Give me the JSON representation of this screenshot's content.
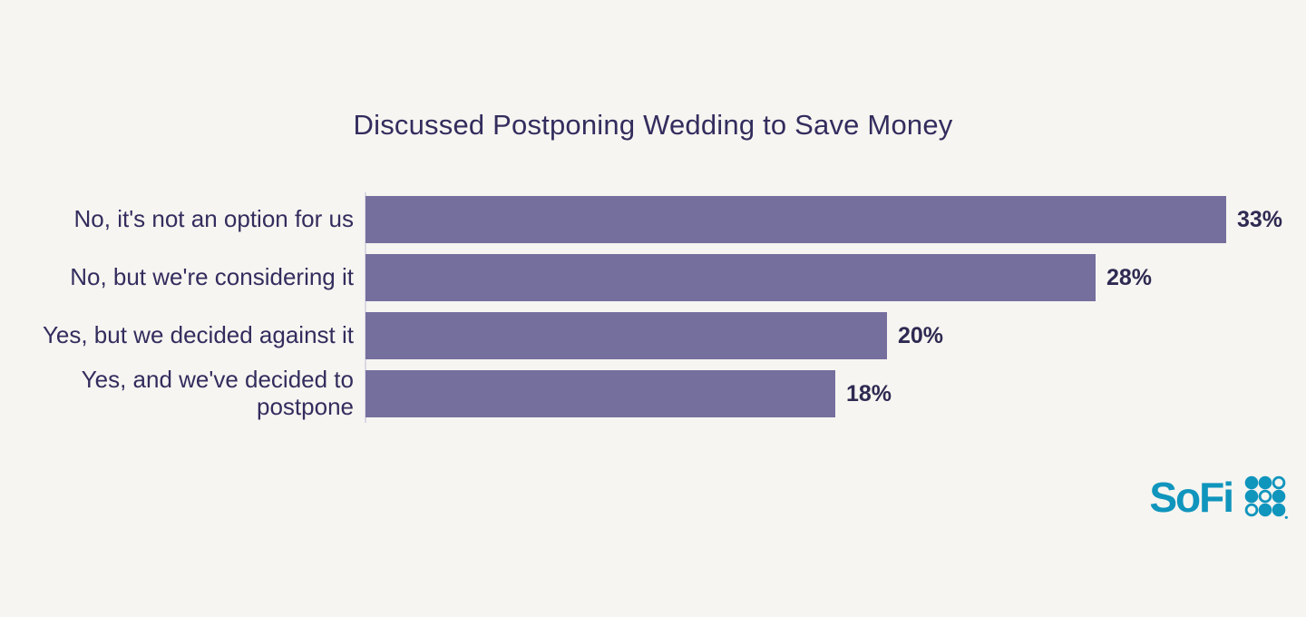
{
  "meta": {
    "background_color": "#F7F5F1"
  },
  "chart_data": {
    "type": "bar",
    "orientation": "horizontal",
    "title": "Discussed Postponing Wedding to Save Money",
    "categories": [
      "No, it's not an option for us",
      "No, but we're considering it",
      "Yes, but we decided against it",
      "Yes, and we've decided to postpone"
    ],
    "values": [
      33,
      28,
      20,
      18
    ],
    "value_labels": [
      "33%",
      "28%",
      "20%",
      "18%"
    ],
    "xlim": [
      0,
      33
    ],
    "grid": false,
    "legend": false,
    "bar_color": "#756F9E",
    "category_label_color": "#332D5E",
    "value_label_color": "#2E2A52",
    "title_color": "#332D5E",
    "axis_line_color": "#DBD8E3"
  },
  "branding": {
    "logo_text": "SoFi",
    "logo_color": "#1095BD",
    "logo_dots_icon": "sofi-dots-icon",
    "logo_dot_pattern": [
      [
        1,
        1,
        0
      ],
      [
        1,
        0,
        1
      ],
      [
        0,
        1,
        1
      ]
    ]
  }
}
